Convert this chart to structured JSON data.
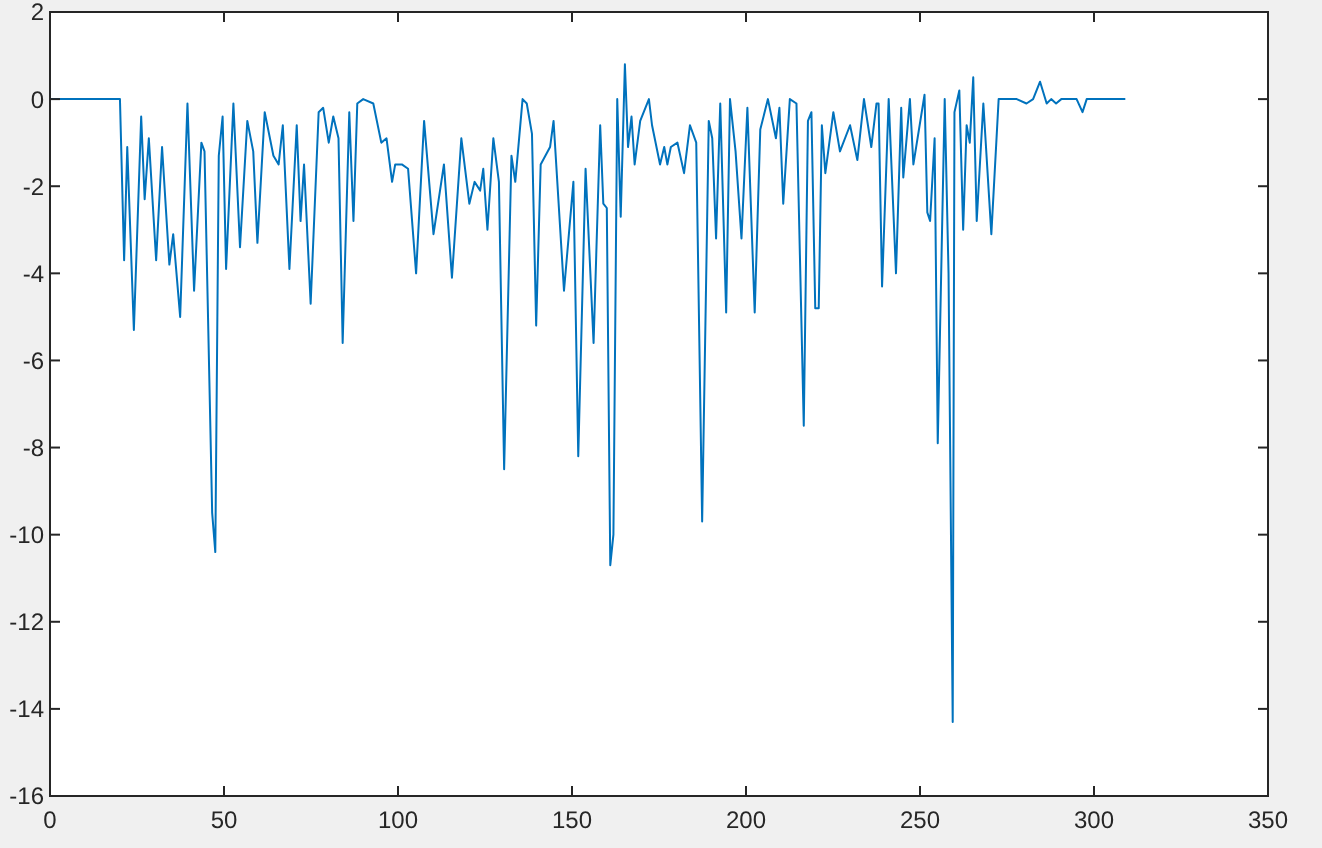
{
  "chart_data": {
    "type": "line",
    "xlim": [
      0,
      350
    ],
    "ylim": [
      -16,
      2
    ],
    "xticks": [
      0,
      50,
      100,
      150,
      200,
      250,
      300,
      350
    ],
    "yticks": [
      -16,
      -14,
      -12,
      -10,
      -8,
      -6,
      -4,
      -2,
      0,
      2
    ],
    "grid": false,
    "marker": "none",
    "line_style": "solid",
    "series": [
      {
        "color": "#0072bd",
        "x": [
          0,
          20.1,
          21.3,
          22.2,
          24.1,
          26.2,
          27.2,
          28.4,
          30.5,
          32.2,
          34.3,
          35.4,
          37.4,
          39.5,
          41.4,
          43.5,
          44.4,
          46.6,
          47.5,
          48.5,
          49.6,
          50.6,
          52.7,
          54.6,
          56.7,
          58.4,
          59.6,
          61.7,
          64.2,
          65.7,
          66.9,
          68.8,
          70.9,
          72,
          73,
          74.9,
          77.2,
          78.5,
          80.1,
          81.4,
          82.9,
          84.1,
          86,
          87.2,
          88.3,
          90,
          92.9,
          95.2,
          96.7,
          98.3,
          99.2,
          101.1,
          102.9,
          105.2,
          107.5,
          110.2,
          113.2,
          115.5,
          118.2,
          120.5,
          122,
          123.6,
          124.5,
          125.7,
          127.4,
          129,
          130.5,
          132.6,
          133.7,
          135.8,
          137,
          138.5,
          139.7,
          141,
          143.7,
          144.7,
          147.7,
          150.4,
          151.8,
          153.9,
          156.2,
          158.1,
          159,
          160,
          161,
          161.9,
          163,
          164,
          165.2,
          166.1,
          167.1,
          168,
          169.6,
          172.1,
          173,
          175.3,
          176.5,
          177.4,
          178.4,
          180.3,
          182.2,
          183.9,
          185.7,
          187.4,
          189.3,
          190.3,
          191.4,
          192.6,
          194.3,
          195.4,
          197,
          198.7,
          200.4,
          202.5,
          204.1,
          206.3,
          208.6,
          209.6,
          210.7,
          212.6,
          214.5,
          216.6,
          217.8,
          218.8,
          219.9,
          220.9,
          221.8,
          222.8,
          225.1,
          227,
          229.9,
          232,
          233.9,
          236,
          237.5,
          238.1,
          239.1,
          241,
          243.1,
          244.6,
          245.2,
          247.1,
          248.1,
          251.3,
          252.1,
          252.9,
          254.2,
          255.1,
          257.1,
          258.2,
          259.4,
          259.9,
          261.3,
          262.4,
          263.4,
          264.3,
          265.3,
          266.3,
          268.2,
          270.5,
          272.6,
          277.8,
          280.6,
          282.5,
          284.5,
          286.4,
          287.7,
          289.1,
          290.6,
          295,
          296.7,
          297.9,
          309
        ],
        "values": [
          0,
          0,
          -3.7,
          -1.1,
          -5.3,
          -0.4,
          -2.3,
          -0.9,
          -3.7,
          -1.1,
          -3.8,
          -3.1,
          -5,
          -0.1,
          -4.4,
          -1,
          -1.2,
          -9.5,
          -10.4,
          -1.3,
          -0.4,
          -3.9,
          -0.1,
          -3.4,
          -0.5,
          -1.2,
          -3.3,
          -0.3,
          -1.3,
          -1.5,
          -0.6,
          -3.9,
          -0.6,
          -2.8,
          -1.5,
          -4.7,
          -0.3,
          -0.2,
          -1,
          -0.4,
          -0.9,
          -5.6,
          -0.3,
          -2.8,
          -0.1,
          0,
          -0.1,
          -1,
          -0.9,
          -1.9,
          -1.5,
          -1.5,
          -1.6,
          -4,
          -0.5,
          -3.1,
          -1.5,
          -4.1,
          -0.9,
          -2.4,
          -1.9,
          -2.1,
          -1.6,
          -3,
          -0.9,
          -1.9,
          -8.5,
          -1.3,
          -1.9,
          0,
          -0.1,
          -0.8,
          -5.2,
          -1.5,
          -1.1,
          -0.5,
          -4.4,
          -1.9,
          -8.2,
          -1.6,
          -5.6,
          -0.6,
          -2.4,
          -2.5,
          -10.7,
          -10,
          0,
          -2.7,
          0.8,
          -1.1,
          -0.4,
          -1.5,
          -0.5,
          0,
          -0.6,
          -1.5,
          -1.1,
          -1.5,
          -1.1,
          -1,
          -1.7,
          -0.6,
          -1,
          -9.7,
          -0.5,
          -0.9,
          -3.2,
          -0.1,
          -4.9,
          0,
          -1.2,
          -3.2,
          -0.2,
          -4.9,
          -0.7,
          0,
          -0.9,
          -0.2,
          -2.4,
          0,
          -0.1,
          -7.5,
          -0.5,
          -0.3,
          -4.8,
          -4.8,
          -0.6,
          -1.7,
          -0.3,
          -1.2,
          -0.6,
          -1.4,
          0,
          -1.1,
          -0.1,
          -0.1,
          -4.3,
          0,
          -4,
          -0.2,
          -1.8,
          0,
          -1.5,
          0.1,
          -2.6,
          -2.8,
          -0.9,
          -7.9,
          0,
          -4,
          -14.3,
          -0.3,
          0.2,
          -3,
          -0.6,
          -1,
          0.5,
          -2.8,
          -0.1,
          -3.1,
          0,
          0,
          -0.1,
          0,
          0.4,
          -0.1,
          0,
          -0.1,
          0,
          0,
          -0.3,
          0,
          0
        ]
      }
    ]
  }
}
